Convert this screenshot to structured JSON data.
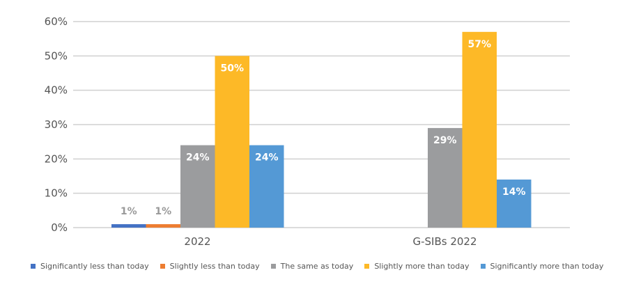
{
  "chart_data": {
    "type": "bar",
    "title": "",
    "xlabel": "",
    "ylabel": "",
    "ylim": [
      0,
      60
    ],
    "yticks": [
      "0%",
      "10%",
      "20%",
      "30%",
      "40%",
      "50%",
      "60%"
    ],
    "ytick_values": [
      0,
      10,
      20,
      30,
      40,
      50,
      60
    ],
    "grid": true,
    "legend_position": "bottom",
    "categories": [
      "2022",
      "G-SIBs 2022"
    ],
    "series": [
      {
        "name": "Significantly less than today",
        "color": "#4472C4",
        "values": [
          1,
          null
        ],
        "labels": [
          "1%",
          ""
        ],
        "label_color": "#999999",
        "label_position": "above"
      },
      {
        "name": "Slightly less than today",
        "color": "#ED7D31",
        "values": [
          1,
          null
        ],
        "labels": [
          "1%",
          ""
        ],
        "label_color": "#999999",
        "label_position": "above"
      },
      {
        "name": "The same as today",
        "color": "#9B9C9E",
        "values": [
          24,
          29
        ],
        "labels": [
          "24%",
          "29%"
        ],
        "label_color": "#ffffff",
        "label_position": "inside"
      },
      {
        "name": "Slightly more than today",
        "color": "#FDB927",
        "values": [
          50,
          57
        ],
        "labels": [
          "50%",
          "57%"
        ],
        "label_color": "#ffffff",
        "label_position": "inside"
      },
      {
        "name": "Significantly more than today",
        "color": "#5499D5",
        "values": [
          24,
          14
        ],
        "labels": [
          "24%",
          "14%"
        ],
        "label_color": "#ffffff",
        "label_position": "inside"
      }
    ]
  }
}
